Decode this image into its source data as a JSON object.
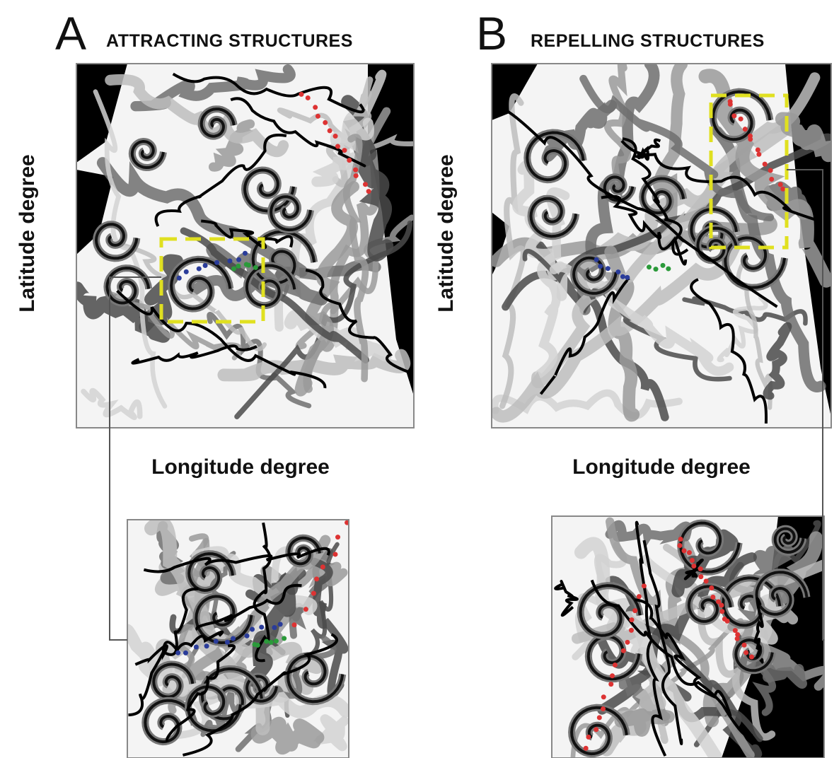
{
  "panels": [
    {
      "letter": "A",
      "title": "ATTRACTING STRUCTURES",
      "y_label": "Latitude degree",
      "x_label": "Longitude degree"
    },
    {
      "letter": "B",
      "title": "REPELLING STRUCTURES",
      "y_label": "Latitude degree",
      "x_label": "Longitude degree"
    }
  ]
}
